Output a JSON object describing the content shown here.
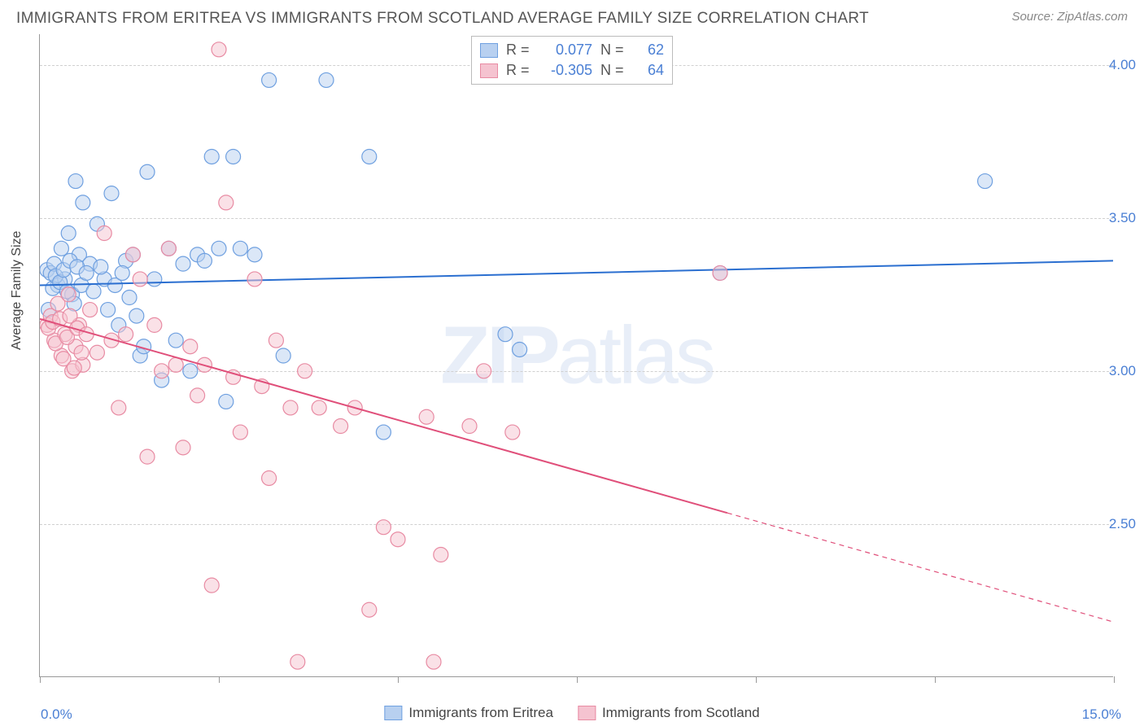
{
  "title": "IMMIGRANTS FROM ERITREA VS IMMIGRANTS FROM SCOTLAND AVERAGE FAMILY SIZE CORRELATION CHART",
  "source_label": "Source: ZipAtlas.com",
  "watermark_zip": "ZIP",
  "watermark_atlas": "atlas",
  "chart": {
    "type": "scatter-correlation",
    "background_color": "#ffffff",
    "grid_color": "#d0d0d0",
    "axis_color": "#999999",
    "text_color": "#555555",
    "value_color": "#4a7fd4",
    "ylabel": "Average Family Size",
    "xlim": [
      0.0,
      15.0
    ],
    "ylim": [
      2.0,
      4.1
    ],
    "yticks": [
      2.5,
      3.0,
      3.5,
      4.0
    ],
    "ytick_labels": [
      "2.50",
      "3.00",
      "3.50",
      "4.00"
    ],
    "xtick_positions": [
      0,
      2.5,
      5.0,
      7.5,
      10.0,
      12.5,
      15.0
    ],
    "xmin_label": "0.0%",
    "xmax_label": "15.0%",
    "point_radius": 9,
    "point_opacity": 0.5,
    "line_width": 2,
    "series": [
      {
        "name": "Immigrants from Eritrea",
        "color": "#6fa0e0",
        "fill": "#b8d0f0",
        "line_color": "#2b6fd0",
        "R": "0.077",
        "N": "62",
        "regression": {
          "x1": 0.0,
          "y1": 3.28,
          "x2": 15.0,
          "y2": 3.36,
          "solid_to_x": 15.0
        },
        "points": [
          [
            0.1,
            3.33
          ],
          [
            0.15,
            3.32
          ],
          [
            0.2,
            3.35
          ],
          [
            0.25,
            3.28
          ],
          [
            0.3,
            3.4
          ],
          [
            0.35,
            3.3
          ],
          [
            0.4,
            3.45
          ],
          [
            0.45,
            3.25
          ],
          [
            0.5,
            3.62
          ],
          [
            0.55,
            3.38
          ],
          [
            0.6,
            3.55
          ],
          [
            0.7,
            3.35
          ],
          [
            0.8,
            3.48
          ],
          [
            0.9,
            3.3
          ],
          [
            1.0,
            3.58
          ],
          [
            1.1,
            3.15
          ],
          [
            1.2,
            3.36
          ],
          [
            1.3,
            3.38
          ],
          [
            1.4,
            3.05
          ],
          [
            1.5,
            3.65
          ],
          [
            1.6,
            3.3
          ],
          [
            1.7,
            2.97
          ],
          [
            1.8,
            3.4
          ],
          [
            1.9,
            3.1
          ],
          [
            2.0,
            3.35
          ],
          [
            2.1,
            3.0
          ],
          [
            2.2,
            3.38
          ],
          [
            2.3,
            3.36
          ],
          [
            2.4,
            3.7
          ],
          [
            2.5,
            3.4
          ],
          [
            2.6,
            2.9
          ],
          [
            2.7,
            3.7
          ],
          [
            2.8,
            3.4
          ],
          [
            3.0,
            3.38
          ],
          [
            3.2,
            3.95
          ],
          [
            3.4,
            3.05
          ],
          [
            4.0,
            3.95
          ],
          [
            4.6,
            3.7
          ],
          [
            4.8,
            2.8
          ],
          [
            6.5,
            3.12
          ],
          [
            6.7,
            3.07
          ],
          [
            9.5,
            3.32
          ],
          [
            13.2,
            3.62
          ],
          [
            0.12,
            3.2
          ],
          [
            0.18,
            3.27
          ],
          [
            0.22,
            3.31
          ],
          [
            0.28,
            3.29
          ],
          [
            0.33,
            3.33
          ],
          [
            0.38,
            3.26
          ],
          [
            0.42,
            3.36
          ],
          [
            0.48,
            3.22
          ],
          [
            0.52,
            3.34
          ],
          [
            0.58,
            3.28
          ],
          [
            0.65,
            3.32
          ],
          [
            0.75,
            3.26
          ],
          [
            0.85,
            3.34
          ],
          [
            0.95,
            3.2
          ],
          [
            1.05,
            3.28
          ],
          [
            1.15,
            3.32
          ],
          [
            1.25,
            3.24
          ],
          [
            1.35,
            3.18
          ],
          [
            1.45,
            3.08
          ]
        ]
      },
      {
        "name": "Immigrants from Scotland",
        "color": "#e88ba3",
        "fill": "#f5c3d0",
        "line_color": "#e04f7a",
        "R": "-0.305",
        "N": "64",
        "regression": {
          "x1": 0.0,
          "y1": 3.17,
          "x2": 15.0,
          "y2": 2.18,
          "solid_to_x": 9.6
        },
        "points": [
          [
            0.1,
            3.15
          ],
          [
            0.15,
            3.18
          ],
          [
            0.2,
            3.1
          ],
          [
            0.25,
            3.22
          ],
          [
            0.3,
            3.05
          ],
          [
            0.35,
            3.12
          ],
          [
            0.4,
            3.25
          ],
          [
            0.45,
            3.0
          ],
          [
            0.5,
            3.08
          ],
          [
            0.55,
            3.15
          ],
          [
            0.6,
            3.02
          ],
          [
            0.7,
            3.2
          ],
          [
            0.8,
            3.06
          ],
          [
            0.9,
            3.45
          ],
          [
            1.0,
            3.1
          ],
          [
            1.1,
            2.88
          ],
          [
            1.2,
            3.12
          ],
          [
            1.3,
            3.38
          ],
          [
            1.4,
            3.3
          ],
          [
            1.5,
            2.72
          ],
          [
            1.6,
            3.15
          ],
          [
            1.7,
            3.0
          ],
          [
            1.8,
            3.4
          ],
          [
            1.9,
            3.02
          ],
          [
            2.0,
            2.75
          ],
          [
            2.1,
            3.08
          ],
          [
            2.2,
            2.92
          ],
          [
            2.3,
            3.02
          ],
          [
            2.4,
            2.3
          ],
          [
            2.5,
            4.05
          ],
          [
            2.6,
            3.55
          ],
          [
            2.7,
            2.98
          ],
          [
            2.8,
            2.8
          ],
          [
            3.0,
            3.3
          ],
          [
            3.1,
            2.95
          ],
          [
            3.2,
            2.65
          ],
          [
            3.3,
            3.1
          ],
          [
            3.5,
            2.88
          ],
          [
            3.6,
            2.05
          ],
          [
            3.7,
            3.0
          ],
          [
            3.9,
            2.88
          ],
          [
            4.2,
            2.82
          ],
          [
            4.4,
            2.88
          ],
          [
            4.6,
            2.22
          ],
          [
            4.8,
            2.49
          ],
          [
            5.0,
            2.45
          ],
          [
            5.4,
            2.85
          ],
          [
            5.5,
            2.05
          ],
          [
            5.6,
            2.4
          ],
          [
            6.0,
            2.82
          ],
          [
            6.2,
            3.0
          ],
          [
            6.6,
            2.8
          ],
          [
            9.5,
            3.32
          ],
          [
            0.12,
            3.14
          ],
          [
            0.18,
            3.16
          ],
          [
            0.22,
            3.09
          ],
          [
            0.28,
            3.17
          ],
          [
            0.33,
            3.04
          ],
          [
            0.38,
            3.11
          ],
          [
            0.42,
            3.18
          ],
          [
            0.48,
            3.01
          ],
          [
            0.52,
            3.14
          ],
          [
            0.58,
            3.06
          ],
          [
            0.65,
            3.12
          ]
        ]
      }
    ]
  },
  "legend_bottom": {
    "items": [
      "Immigrants from Eritrea",
      "Immigrants from Scotland"
    ]
  }
}
